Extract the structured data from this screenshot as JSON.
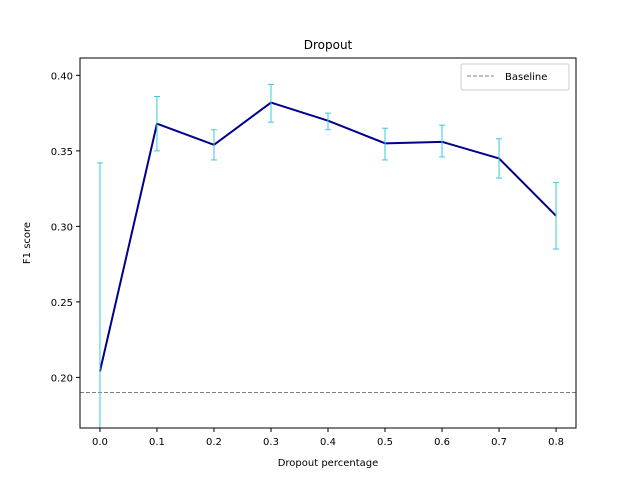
{
  "chart_data": {
    "type": "line",
    "title": "Dropout",
    "xlabel": "Dropout percentage",
    "ylabel": "F1 score",
    "x": [
      0.0,
      0.1,
      0.2,
      0.3,
      0.4,
      0.5,
      0.6,
      0.7,
      0.8
    ],
    "x_tick_labels": [
      "0.0",
      "0.1",
      "0.2",
      "0.3",
      "0.4",
      "0.5",
      "0.6",
      "0.7",
      "0.8"
    ],
    "y_ticks": [
      0.2,
      0.25,
      0.3,
      0.35,
      0.4
    ],
    "y_tick_labels": [
      "0.20",
      "0.25",
      "0.30",
      "0.35",
      "0.40"
    ],
    "xlim": [
      -0.035,
      0.835
    ],
    "ylim": [
      0.1665,
      0.4115
    ],
    "grid": false,
    "legend_placement": "top-right",
    "series": [
      {
        "values": [
          0.204,
          0.368,
          0.354,
          0.382,
          0.37,
          0.355,
          0.356,
          0.345,
          0.307
        ],
        "error_low": [
          0.166,
          0.35,
          0.344,
          0.369,
          0.364,
          0.344,
          0.346,
          0.332,
          0.285
        ],
        "error_high": [
          0.342,
          0.386,
          0.364,
          0.394,
          0.375,
          0.365,
          0.367,
          0.358,
          0.329
        ],
        "color": "#00008b",
        "error_color": "#3ec8dc"
      }
    ],
    "baseline": {
      "name": "Baseline",
      "value": 0.19,
      "color": "#808080",
      "style": "dashed"
    }
  }
}
